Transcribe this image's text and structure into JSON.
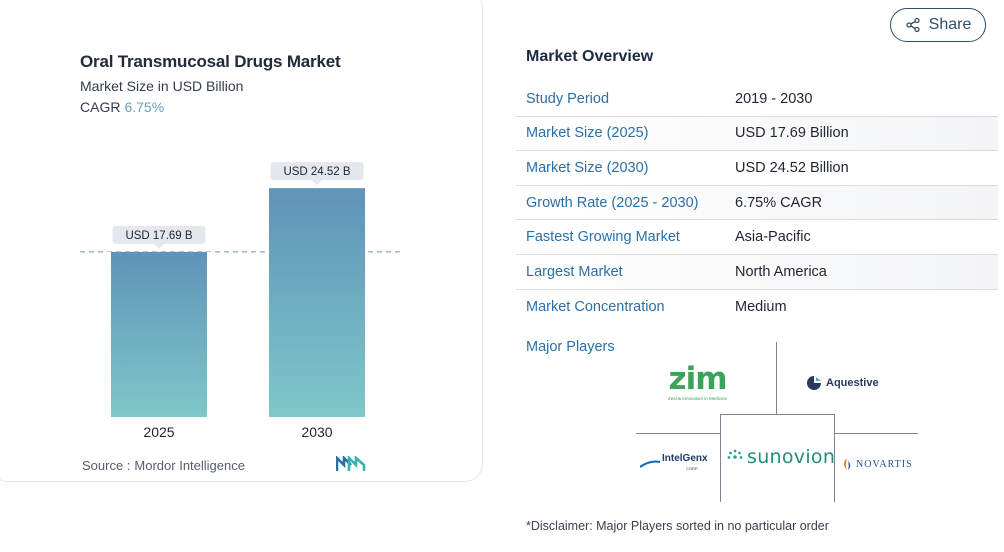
{
  "chart_card": {
    "title": "Oral Transmucosal Drugs Market",
    "subtitle": "Market Size in USD Billion",
    "cagr_label": "CAGR",
    "cagr_value": "6.75%",
    "source_label": "Source :",
    "source_name": "Mordor Intelligence"
  },
  "chart_data": {
    "type": "bar",
    "title": "Oral Transmucosal Drugs Market",
    "subtitle": "Market Size in USD Billion",
    "categories": [
      "2025",
      "2030"
    ],
    "values": [
      17.69,
      24.52
    ],
    "data_labels": [
      "USD 17.69 B",
      "USD 24.52 B"
    ],
    "ylim": [
      0,
      30
    ],
    "reference_line_value": 17.69,
    "grid": false,
    "bar_color_top": "#5f93b8",
    "bar_color_bottom": "#7fc7c9"
  },
  "share": {
    "label": "Share",
    "icon": "share-icon"
  },
  "overview": {
    "title": "Market Overview",
    "rows": [
      {
        "label": "Study Period",
        "value": "2019 - 2030"
      },
      {
        "label": "Market Size (2025)",
        "value": "USD 17.69 Billion"
      },
      {
        "label": "Market Size (2030)",
        "value": "USD 24.52 Billion"
      },
      {
        "label": "Growth Rate (2025 - 2030)",
        "value": "6.75% CAGR"
      },
      {
        "label": "Fastest Growing Market",
        "value": "Asia-Pacific"
      },
      {
        "label": "Largest Market",
        "value": "North America"
      },
      {
        "label": "Market Concentration",
        "value": "Medium"
      }
    ]
  },
  "major_players": {
    "title": "Major Players",
    "logos": {
      "zim": "zim",
      "zim_tagline": "Zeal & Innovation in Medicine",
      "aquestive": "Aquestive",
      "intelgenx": "IntelGenx",
      "intelgenx_sub": "CORP.",
      "sunovion": "sunovion",
      "novartis": "NOVARTIS"
    }
  },
  "disclaimer": "*Disclaimer: Major Players sorted in no particular order"
}
